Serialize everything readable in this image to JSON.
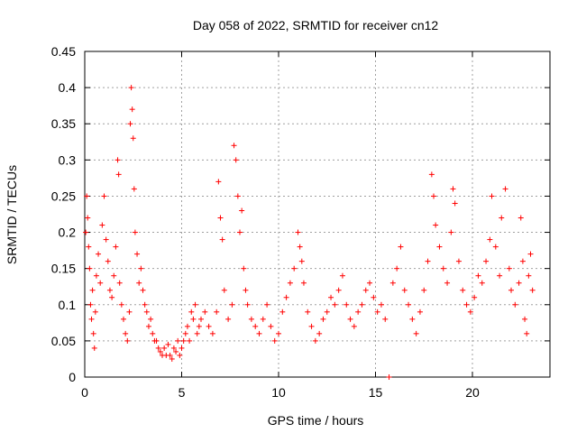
{
  "chart_data": {
    "type": "scatter",
    "title": "Day 058 of 2022, SRMTID for receiver cn12",
    "xlabel": "GPS time / hours",
    "ylabel": "SRMTID / TECUs",
    "xlim": [
      0,
      24
    ],
    "ylim": [
      0,
      0.45
    ],
    "xticks": [
      0,
      5,
      10,
      15,
      20
    ],
    "xtick_labels": [
      "0",
      "5",
      "10",
      "15",
      "20"
    ],
    "yticks": [
      0,
      0.05,
      0.1,
      0.15,
      0.2,
      0.25,
      0.3,
      0.35,
      0.4,
      0.45
    ],
    "ytick_labels": [
      "0",
      "0.05",
      "0.1",
      "0.15",
      "0.2",
      "0.25",
      "0.3",
      "0.35",
      "0.4",
      "0.45"
    ],
    "grid": true,
    "marker": "+",
    "color": "#ff0000",
    "series": [
      {
        "name": "SRMTID",
        "points": [
          [
            0.05,
            0.2
          ],
          [
            0.1,
            0.25
          ],
          [
            0.15,
            0.22
          ],
          [
            0.2,
            0.18
          ],
          [
            0.25,
            0.15
          ],
          [
            0.3,
            0.1
          ],
          [
            0.35,
            0.08
          ],
          [
            0.4,
            0.12
          ],
          [
            0.45,
            0.06
          ],
          [
            0.5,
            0.04
          ],
          [
            0.55,
            0.09
          ],
          [
            0.6,
            0.14
          ],
          [
            0.7,
            0.17
          ],
          [
            0.8,
            0.13
          ],
          [
            0.9,
            0.21
          ],
          [
            1.0,
            0.25
          ],
          [
            1.1,
            0.19
          ],
          [
            1.2,
            0.16
          ],
          [
            1.3,
            0.12
          ],
          [
            1.4,
            0.11
          ],
          [
            1.5,
            0.14
          ],
          [
            1.6,
            0.18
          ],
          [
            1.7,
            0.3
          ],
          [
            1.75,
            0.28
          ],
          [
            1.8,
            0.13
          ],
          [
            1.9,
            0.1
          ],
          [
            2.0,
            0.08
          ],
          [
            2.1,
            0.06
          ],
          [
            2.2,
            0.05
          ],
          [
            2.3,
            0.09
          ],
          [
            2.35,
            0.35
          ],
          [
            2.4,
            0.4
          ],
          [
            2.45,
            0.37
          ],
          [
            2.5,
            0.33
          ],
          [
            2.55,
            0.26
          ],
          [
            2.6,
            0.2
          ],
          [
            2.7,
            0.17
          ],
          [
            2.8,
            0.13
          ],
          [
            2.9,
            0.15
          ],
          [
            3.0,
            0.12
          ],
          [
            3.1,
            0.1
          ],
          [
            3.2,
            0.09
          ],
          [
            3.3,
            0.07
          ],
          [
            3.4,
            0.08
          ],
          [
            3.5,
            0.06
          ],
          [
            3.6,
            0.05
          ],
          [
            3.7,
            0.05
          ],
          [
            3.8,
            0.04
          ],
          [
            3.9,
            0.035
          ],
          [
            4.0,
            0.03
          ],
          [
            4.1,
            0.04
          ],
          [
            4.2,
            0.03
          ],
          [
            4.3,
            0.045
          ],
          [
            4.4,
            0.03
          ],
          [
            4.5,
            0.025
          ],
          [
            4.6,
            0.04
          ],
          [
            4.7,
            0.035
          ],
          [
            4.8,
            0.05
          ],
          [
            4.9,
            0.03
          ],
          [
            5.0,
            0.04
          ],
          [
            5.1,
            0.05
          ],
          [
            5.2,
            0.06
          ],
          [
            5.3,
            0.07
          ],
          [
            5.4,
            0.05
          ],
          [
            5.5,
            0.09
          ],
          [
            5.6,
            0.08
          ],
          [
            5.7,
            0.1
          ],
          [
            5.8,
            0.06
          ],
          [
            5.9,
            0.07
          ],
          [
            6.0,
            0.08
          ],
          [
            6.2,
            0.09
          ],
          [
            6.4,
            0.07
          ],
          [
            6.6,
            0.06
          ],
          [
            6.8,
            0.09
          ],
          [
            6.9,
            0.27
          ],
          [
            7.0,
            0.22
          ],
          [
            7.1,
            0.19
          ],
          [
            7.2,
            0.12
          ],
          [
            7.4,
            0.08
          ],
          [
            7.6,
            0.1
          ],
          [
            7.7,
            0.32
          ],
          [
            7.8,
            0.3
          ],
          [
            7.9,
            0.25
          ],
          [
            8.0,
            0.2
          ],
          [
            8.1,
            0.23
          ],
          [
            8.2,
            0.15
          ],
          [
            8.3,
            0.12
          ],
          [
            8.4,
            0.1
          ],
          [
            8.6,
            0.08
          ],
          [
            8.8,
            0.07
          ],
          [
            9.0,
            0.06
          ],
          [
            9.2,
            0.08
          ],
          [
            9.4,
            0.1
          ],
          [
            9.6,
            0.07
          ],
          [
            9.8,
            0.05
          ],
          [
            10.0,
            0.06
          ],
          [
            10.2,
            0.09
          ],
          [
            10.4,
            0.11
          ],
          [
            10.6,
            0.13
          ],
          [
            10.8,
            0.15
          ],
          [
            11.0,
            0.2
          ],
          [
            11.1,
            0.18
          ],
          [
            11.2,
            0.16
          ],
          [
            11.3,
            0.13
          ],
          [
            11.5,
            0.09
          ],
          [
            11.7,
            0.07
          ],
          [
            11.9,
            0.05
          ],
          [
            12.1,
            0.06
          ],
          [
            12.3,
            0.08
          ],
          [
            12.5,
            0.09
          ],
          [
            12.7,
            0.11
          ],
          [
            12.9,
            0.1
          ],
          [
            13.1,
            0.12
          ],
          [
            13.3,
            0.14
          ],
          [
            13.5,
            0.1
          ],
          [
            13.7,
            0.08
          ],
          [
            13.9,
            0.07
          ],
          [
            14.1,
            0.09
          ],
          [
            14.3,
            0.1
          ],
          [
            14.5,
            0.12
          ],
          [
            14.7,
            0.13
          ],
          [
            14.9,
            0.11
          ],
          [
            15.1,
            0.09
          ],
          [
            15.3,
            0.1
          ],
          [
            15.5,
            0.08
          ],
          [
            15.7,
            0.0
          ],
          [
            15.9,
            0.13
          ],
          [
            16.1,
            0.15
          ],
          [
            16.3,
            0.18
          ],
          [
            16.5,
            0.12
          ],
          [
            16.7,
            0.1
          ],
          [
            16.9,
            0.08
          ],
          [
            17.1,
            0.06
          ],
          [
            17.3,
            0.09
          ],
          [
            17.5,
            0.12
          ],
          [
            17.7,
            0.16
          ],
          [
            17.9,
            0.28
          ],
          [
            18.0,
            0.25
          ],
          [
            18.1,
            0.21
          ],
          [
            18.3,
            0.18
          ],
          [
            18.5,
            0.15
          ],
          [
            18.7,
            0.13
          ],
          [
            18.9,
            0.2
          ],
          [
            19.0,
            0.26
          ],
          [
            19.1,
            0.24
          ],
          [
            19.3,
            0.16
          ],
          [
            19.5,
            0.12
          ],
          [
            19.7,
            0.1
          ],
          [
            19.9,
            0.09
          ],
          [
            20.1,
            0.11
          ],
          [
            20.3,
            0.14
          ],
          [
            20.5,
            0.13
          ],
          [
            20.7,
            0.16
          ],
          [
            20.9,
            0.19
          ],
          [
            21.0,
            0.25
          ],
          [
            21.2,
            0.18
          ],
          [
            21.4,
            0.14
          ],
          [
            21.5,
            0.22
          ],
          [
            21.7,
            0.26
          ],
          [
            21.9,
            0.15
          ],
          [
            22.0,
            0.12
          ],
          [
            22.2,
            0.1
          ],
          [
            22.4,
            0.13
          ],
          [
            22.5,
            0.22
          ],
          [
            22.6,
            0.16
          ],
          [
            22.7,
            0.08
          ],
          [
            22.8,
            0.06
          ],
          [
            22.9,
            0.14
          ],
          [
            23.0,
            0.17
          ],
          [
            23.1,
            0.12
          ]
        ]
      }
    ]
  }
}
